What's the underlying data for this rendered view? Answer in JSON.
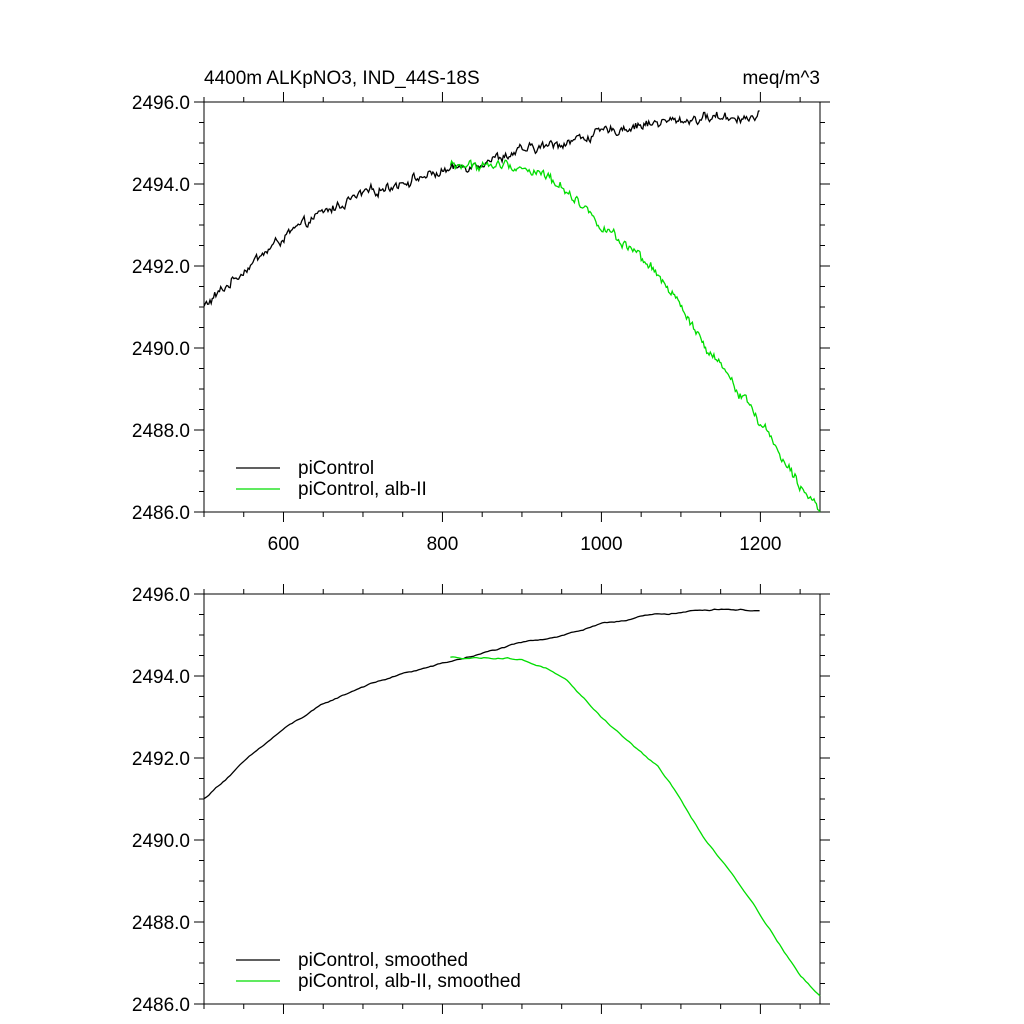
{
  "figure": {
    "title_left": "4400m ALKpNO3, IND_44S-18S",
    "title_right": "meq/m^3",
    "colors": {
      "piControl": "#000000",
      "alb": "#00dd00"
    }
  },
  "chart_data": [
    {
      "type": "line",
      "name": "raw",
      "xlim": [
        500,
        1275
      ],
      "ylim": [
        2486.0,
        2496.0
      ],
      "x_ticks": [
        600,
        800,
        1000,
        1200
      ],
      "x_tick_labels": [
        "600",
        "800",
        "1000",
        "1200"
      ],
      "y_ticks": [
        2486.0,
        2488.0,
        2490.0,
        2492.0,
        2494.0,
        2496.0
      ],
      "y_tick_labels": [
        "2486.0",
        "2488.0",
        "2490.0",
        "2492.0",
        "2494.0",
        "2496.0"
      ],
      "legend": [
        "piControl",
        "piControl, alb-II"
      ],
      "legend_position": "bottom-left",
      "noisy": true,
      "series": [
        {
          "name": "piControl",
          "color": "#000000",
          "x": [
            500,
            550,
            600,
            650,
            700,
            750,
            800,
            850,
            900,
            950,
            1000,
            1050,
            1100,
            1150,
            1200
          ],
          "y": [
            2491.0,
            2491.9,
            2492.7,
            2493.3,
            2493.75,
            2494.05,
            2494.3,
            2494.55,
            2494.8,
            2495.0,
            2495.25,
            2495.45,
            2495.55,
            2495.65,
            2495.6
          ]
        },
        {
          "name": "piControl, alb-II",
          "color": "#00dd00",
          "x": [
            810,
            850,
            880,
            900,
            930,
            960,
            1000,
            1040,
            1070,
            1100,
            1130,
            1160,
            1190,
            1220,
            1250,
            1275
          ],
          "y": [
            2494.45,
            2494.45,
            2494.45,
            2494.4,
            2494.2,
            2493.8,
            2493.0,
            2492.3,
            2491.8,
            2491.0,
            2490.0,
            2489.3,
            2488.5,
            2487.6,
            2486.7,
            2486.1
          ]
        }
      ]
    },
    {
      "type": "line",
      "name": "smoothed",
      "xlim": [
        500,
        1275
      ],
      "ylim": [
        2486.0,
        2496.0
      ],
      "x_ticks": [
        600,
        800,
        1000,
        1200
      ],
      "x_tick_labels": [],
      "y_ticks": [
        2486.0,
        2488.0,
        2490.0,
        2492.0,
        2494.0,
        2496.0
      ],
      "y_tick_labels": [
        "2486.0",
        "2488.0",
        "2490.0",
        "2492.0",
        "2494.0",
        "2496.0"
      ],
      "legend": [
        "piControl, smoothed",
        "piControl, alb-II, smoothed"
      ],
      "legend_position": "bottom-left",
      "noisy": false,
      "series": [
        {
          "name": "piControl, smoothed",
          "color": "#000000",
          "x": [
            500,
            550,
            600,
            650,
            700,
            750,
            800,
            850,
            900,
            950,
            1000,
            1050,
            1100,
            1150,
            1200
          ],
          "y": [
            2491.0,
            2491.9,
            2492.7,
            2493.3,
            2493.75,
            2494.05,
            2494.3,
            2494.55,
            2494.8,
            2495.0,
            2495.25,
            2495.45,
            2495.55,
            2495.65,
            2495.6
          ]
        },
        {
          "name": "piControl, alb-II, smoothed",
          "color": "#00dd00",
          "x": [
            810,
            850,
            880,
            900,
            930,
            960,
            1000,
            1040,
            1070,
            1100,
            1130,
            1160,
            1190,
            1220,
            1250,
            1275
          ],
          "y": [
            2494.45,
            2494.45,
            2494.45,
            2494.4,
            2494.2,
            2493.8,
            2493.0,
            2492.3,
            2491.8,
            2491.0,
            2490.0,
            2489.3,
            2488.5,
            2487.6,
            2486.7,
            2486.2
          ]
        }
      ]
    }
  ]
}
